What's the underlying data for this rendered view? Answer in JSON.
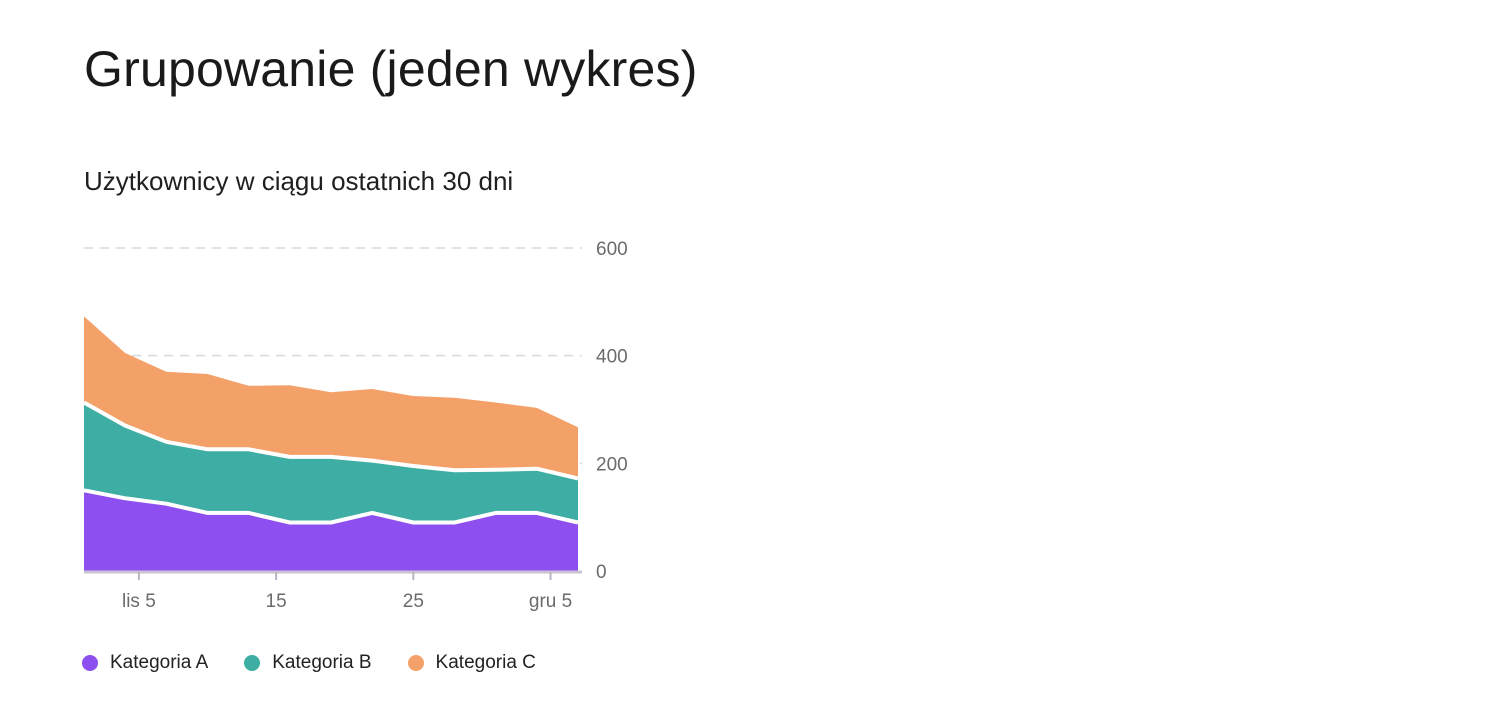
{
  "page": {
    "title": "Grupowanie (jeden wykres)"
  },
  "chart_data": {
    "type": "area",
    "stacked": true,
    "title": "Użytkownicy w ciągu ostatnich 30 dni",
    "xlabel": "",
    "ylabel": "",
    "x": [
      "lis 1",
      "lis 4",
      "lis 7",
      "lis 10",
      "lis 13",
      "lis 16",
      "lis 19",
      "lis 22",
      "lis 25",
      "lis 28",
      "gru 1",
      "gru 4",
      "gru 7"
    ],
    "x_ticks": [
      "lis 5",
      "15",
      "25",
      "gru 5"
    ],
    "x_tick_positions": [
      "lis 5",
      "lis 15",
      "lis 25",
      "gru 5"
    ],
    "ylim": [
      0,
      600
    ],
    "y_ticks": [
      "0",
      "200",
      "400",
      "600"
    ],
    "y_axis_side": "right",
    "grid": true,
    "legend_position": "bottom-left",
    "series": [
      {
        "name": "Kategoria A",
        "color": "#8e4ff0",
        "values": [
          150,
          135,
          125,
          108,
          108,
          90,
          90,
          108,
          90,
          90,
          108,
          108,
          90
        ]
      },
      {
        "name": "Kategoria B",
        "color": "#3eada3",
        "values": [
          163,
          135,
          115,
          118,
          118,
          122,
          122,
          97,
          105,
          97,
          80,
          82,
          82
        ]
      },
      {
        "name": "Kategoria C",
        "color": "#f4a169",
        "values": [
          160,
          135,
          130,
          140,
          118,
          133,
          120,
          133,
          130,
          135,
          125,
          113,
          95
        ]
      }
    ]
  }
}
